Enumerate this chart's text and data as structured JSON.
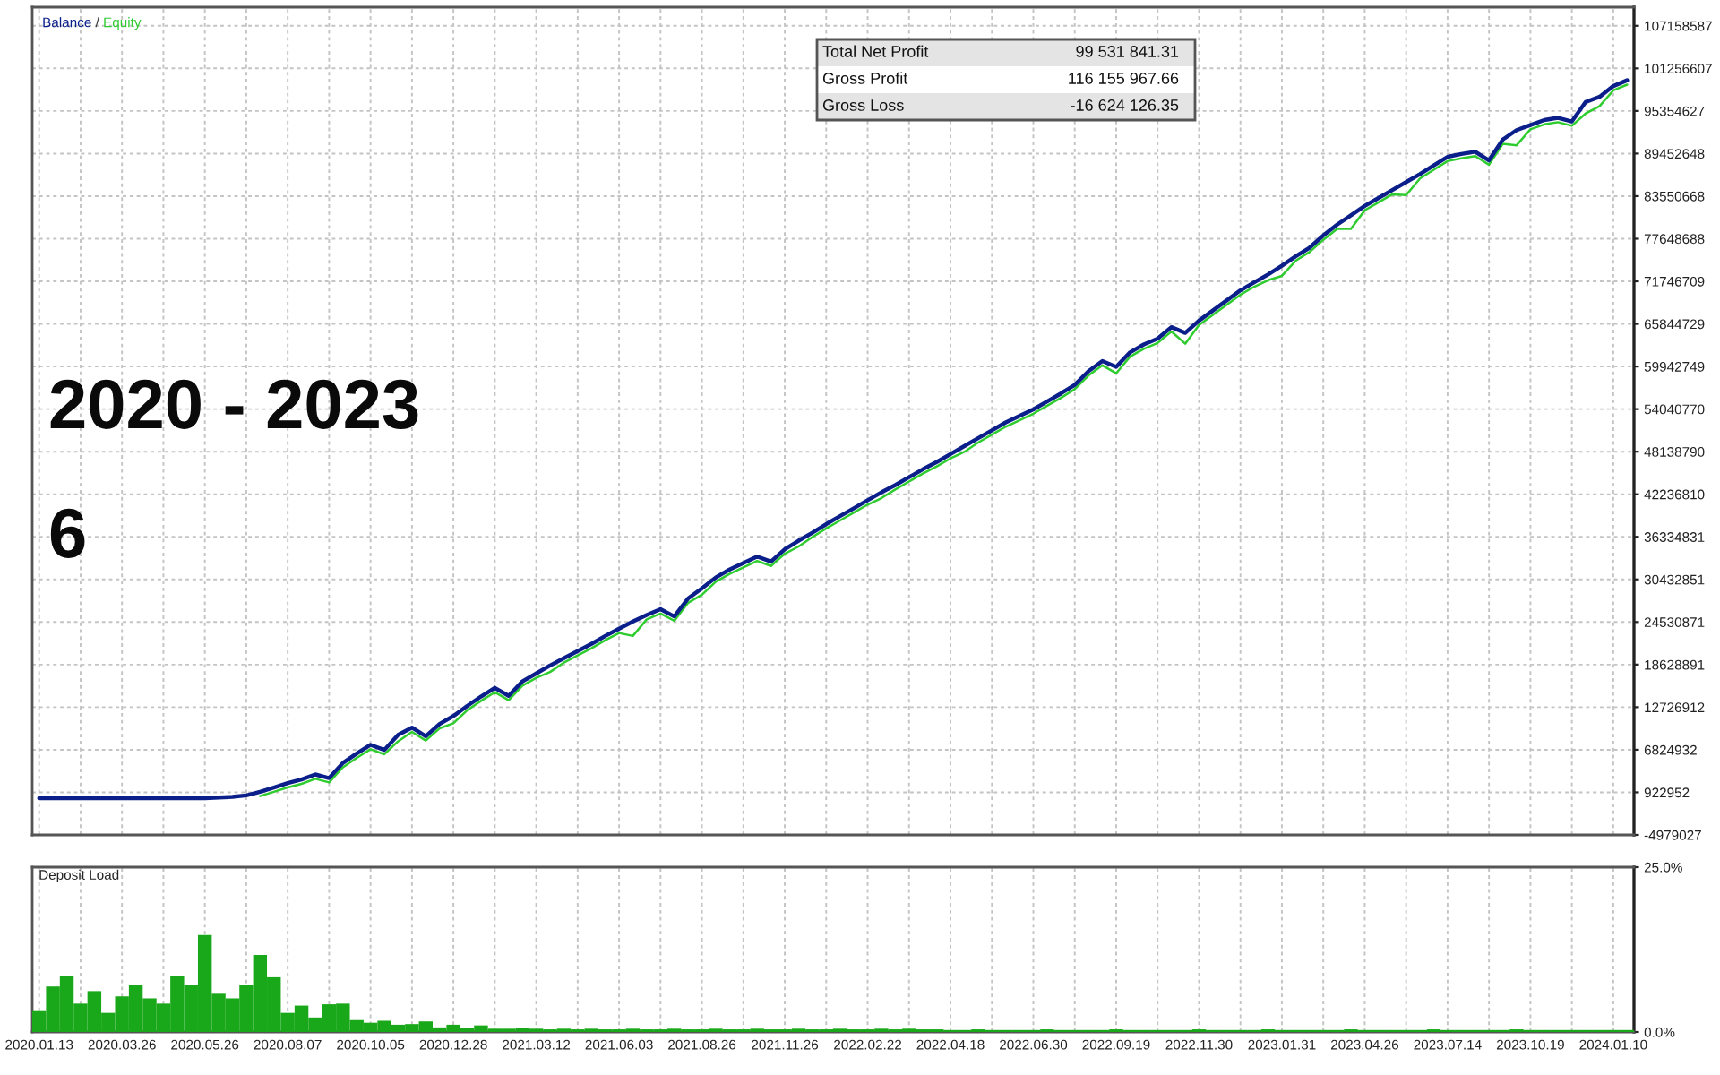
{
  "chart_data": [
    {
      "type": "line",
      "legend": "top left",
      "grid": true,
      "tick_labels": "y",
      "categories": [
        "2020.01.13",
        null,
        null,
        null,
        null,
        null,
        "2020.03.26",
        null,
        null,
        null,
        null,
        null,
        "2020.05.26",
        null,
        null,
        null,
        null,
        null,
        "2020.08.07",
        null,
        null,
        null,
        null,
        null,
        "2020.10.05",
        null,
        null,
        null,
        null,
        null,
        "2020.12.28",
        null,
        null,
        null,
        null,
        null,
        "2021.03.12",
        null,
        null,
        null,
        null,
        null,
        "2021.06.03",
        null,
        null,
        null,
        null,
        null,
        "2021.08.26",
        null,
        null,
        null,
        null,
        null,
        "2021.11.26",
        null,
        null,
        null,
        null,
        null,
        "2022.02.22",
        null,
        null,
        null,
        null,
        null,
        "2022.04.18",
        null,
        null,
        null,
        null,
        null,
        "2022.06.30",
        null,
        null,
        null,
        null,
        null,
        "2022.09.19",
        null,
        null,
        null,
        null,
        null,
        "2022.11.30",
        null,
        null,
        null,
        null,
        null,
        "2023.01.31",
        null,
        null,
        null,
        null,
        null,
        "2023.04.26",
        null,
        null,
        null,
        null,
        null,
        "2023.07.14",
        null,
        null,
        null,
        null,
        null,
        "2023.10.19",
        null,
        null,
        null,
        null,
        null,
        "2024.01.10",
        null
      ],
      "ylim": [
        -4979027,
        109740000
      ],
      "yticks": [
        -4979027,
        922952,
        6824932,
        12726912,
        18628891,
        24530871,
        30432851,
        36334831,
        42236810,
        48138790,
        54040770,
        59942749,
        65844729,
        71746709,
        77648688,
        83550668,
        89452648,
        95354627,
        101256607,
        107158587
      ],
      "annotations": [
        "Total Net Profit",
        "99 531 841.31",
        "Gross Profit",
        "116 155 967.66",
        "Gross Loss",
        "-16 624 126.35",
        "2020 - 2023",
        "6",
        "/"
      ],
      "series": [
        {
          "name": "Balance",
          "color": "#0b1f8a",
          "values": [
            100000,
            100000,
            100000,
            100000,
            100000,
            100000,
            100000,
            100000,
            100000,
            100000,
            100000,
            100000,
            100000,
            200000,
            300000,
            500000,
            1000000,
            1600000,
            2200000,
            2700000,
            3400000,
            2900000,
            5000000,
            6300000,
            7500000,
            6800000,
            8900000,
            9900000,
            8700000,
            10400000,
            11500000,
            12900000,
            14200000,
            15400000,
            14300000,
            16300000,
            17400000,
            18500000,
            19500000,
            20500000,
            21500000,
            22600000,
            23600000,
            24600000,
            25500000,
            26300000,
            25300000,
            27800000,
            29200000,
            30700000,
            31800000,
            32700000,
            33600000,
            32900000,
            34600000,
            35800000,
            36900000,
            38100000,
            39200000,
            40300000,
            41400000,
            42500000,
            43500000,
            44600000,
            45700000,
            46700000,
            47800000,
            48900000,
            50000000,
            51100000,
            52200000,
            53100000,
            54000000,
            55100000,
            56200000,
            57400000,
            59300000,
            60700000,
            59900000,
            61900000,
            63000000,
            63800000,
            65400000,
            64600000,
            66300000,
            67700000,
            69100000,
            70500000,
            71600000,
            72700000,
            73900000,
            75200000,
            76400000,
            78100000,
            79600000,
            80900000,
            82200000,
            83300000,
            84400000,
            85500000,
            86600000,
            87800000,
            89000000,
            89400000,
            89700000,
            88500000,
            91400000,
            92700000,
            93400000,
            94100000,
            94400000,
            93900000,
            96600000,
            97300000,
            98800000,
            99600000
          ]
        },
        {
          "name": "Equity",
          "color": "#2ecc2e",
          "values": [
            null,
            null,
            null,
            null,
            null,
            null,
            null,
            null,
            null,
            null,
            null,
            null,
            null,
            null,
            null,
            null,
            400000,
            1000000,
            1600000,
            2100000,
            2800000,
            2300000,
            4400000,
            5700000,
            6900000,
            6200000,
            8000000,
            9300000,
            8100000,
            9800000,
            10500000,
            12300000,
            13600000,
            14800000,
            13700000,
            15700000,
            16800000,
            17600000,
            18900000,
            19900000,
            20900000,
            22000000,
            23000000,
            22600000,
            24900000,
            25700000,
            24700000,
            27200000,
            28300000,
            30100000,
            31200000,
            32100000,
            33000000,
            32300000,
            34000000,
            35000000,
            36300000,
            37500000,
            38600000,
            39700000,
            40800000,
            41700000,
            42900000,
            44000000,
            45100000,
            46100000,
            47200000,
            48100000,
            49400000,
            50500000,
            51600000,
            52500000,
            53400000,
            54500000,
            55600000,
            56800000,
            58700000,
            60100000,
            59000000,
            61300000,
            62400000,
            63200000,
            64800000,
            63100000,
            65700000,
            67100000,
            68500000,
            69900000,
            71000000,
            71900000,
            72500000,
            74600000,
            75800000,
            77500000,
            79000000,
            79000000,
            81600000,
            82700000,
            83800000,
            83700000,
            86000000,
            87200000,
            88400000,
            88800000,
            89100000,
            87900000,
            90800000,
            90600000,
            92800000,
            93500000,
            93800000,
            93300000,
            95000000,
            96000000,
            98200000,
            99000000
          ]
        }
      ]
    },
    {
      "type": "bar",
      "title": "Deposit Load",
      "grid": "x",
      "color": "#19a819",
      "categories": [
        "2020.01.13",
        null,
        null,
        null,
        null,
        null,
        "2020.03.26",
        null,
        null,
        null,
        null,
        null,
        "2020.05.26",
        null,
        null,
        null,
        null,
        null,
        "2020.08.07",
        null,
        null,
        null,
        null,
        null,
        "2020.10.05",
        null,
        null,
        null,
        null,
        null,
        "2020.12.28",
        null,
        null,
        null,
        null,
        null,
        "2021.03.12",
        null,
        null,
        null,
        null,
        null,
        "2021.06.03",
        null,
        null,
        null,
        null,
        null,
        "2021.08.26",
        null,
        null,
        null,
        null,
        null,
        "2021.11.26",
        null,
        null,
        null,
        null,
        null,
        "2022.02.22",
        null,
        null,
        null,
        null,
        null,
        "2022.04.18",
        null,
        null,
        null,
        null,
        null,
        "2022.06.30",
        null,
        null,
        null,
        null,
        null,
        "2022.09.19",
        null,
        null,
        null,
        null,
        null,
        "2022.11.30",
        null,
        null,
        null,
        null,
        null,
        "2023.01.31",
        null,
        null,
        null,
        null,
        null,
        "2023.04.26",
        null,
        null,
        null,
        null,
        null,
        "2023.07.14",
        null,
        null,
        null,
        null,
        null,
        "2023.10.19",
        null,
        null,
        null,
        null,
        null,
        "2024.01.10",
        null
      ],
      "ylim": [
        0,
        25
      ],
      "yticks": [
        {
          "value": 0,
          "label": "0.0%"
        },
        {
          "value": 25,
          "label": "25.0%"
        }
      ],
      "values": [
        3.3,
        6.9,
        8.5,
        4.3,
        6.2,
        2.9,
        5.4,
        7.2,
        5.1,
        4.3,
        8.5,
        7.2,
        14.7,
        5.8,
        5.1,
        7.2,
        11.7,
        8.3,
        2.9,
        4.0,
        2.2,
        4.2,
        4.3,
        1.8,
        1.4,
        1.7,
        1.1,
        1.2,
        1.6,
        0.7,
        1.1,
        0.6,
        1.0,
        0.5,
        0.5,
        0.6,
        0.5,
        0.4,
        0.5,
        0.4,
        0.5,
        0.4,
        0.4,
        0.5,
        0.4,
        0.4,
        0.5,
        0.4,
        0.4,
        0.5,
        0.4,
        0.4,
        0.5,
        0.4,
        0.4,
        0.5,
        0.4,
        0.4,
        0.5,
        0.4,
        0.4,
        0.5,
        0.4,
        0.5,
        0.4,
        0.4,
        0.3,
        0.3,
        0.4,
        0.3,
        0.3,
        0.3,
        0.3,
        0.4,
        0.3,
        0.3,
        0.3,
        0.3,
        0.4,
        0.3,
        0.3,
        0.3,
        0.3,
        0.3,
        0.4,
        0.3,
        0.3,
        0.3,
        0.3,
        0.4,
        0.3,
        0.3,
        0.3,
        0.3,
        0.3,
        0.4,
        0.3,
        0.3,
        0.3,
        0.3,
        0.3,
        0.4,
        0.3,
        0.3,
        0.3,
        0.3,
        0.3,
        0.4,
        0.3,
        0.3,
        0.3,
        0.3,
        0.3,
        0.3,
        0.3,
        0.3
      ]
    }
  ]
}
